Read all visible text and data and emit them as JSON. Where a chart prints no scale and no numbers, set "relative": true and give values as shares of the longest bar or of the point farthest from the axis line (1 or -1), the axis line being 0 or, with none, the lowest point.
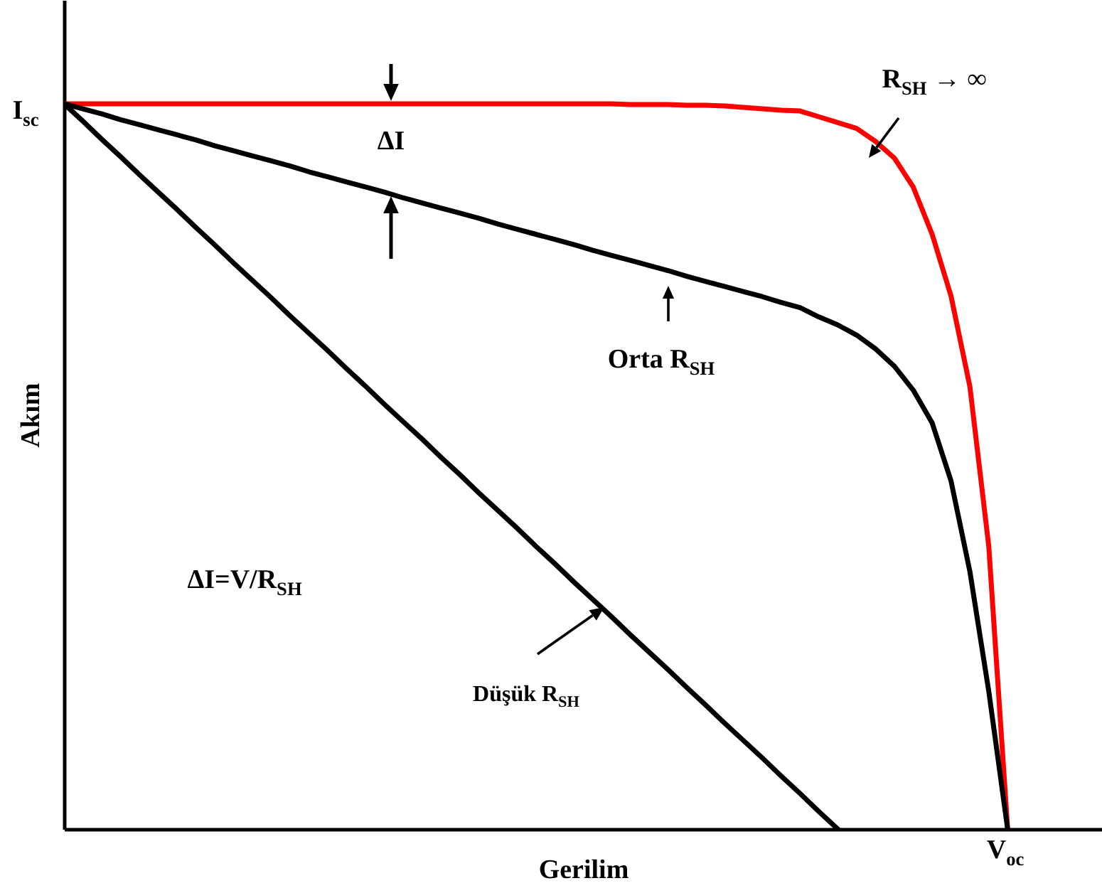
{
  "chart_data": {
    "type": "line",
    "relative": true,
    "xlabel": "Gerilim",
    "ylabel": "Akım",
    "grid": false,
    "marker": "none",
    "line_style": "solid",
    "categories": [
      null,
      null,
      null,
      null,
      null,
      null,
      null,
      null,
      null,
      null,
      null,
      null,
      null,
      null,
      null,
      null,
      null,
      null,
      null,
      null,
      null,
      null,
      null,
      null,
      null,
      null,
      null,
      null,
      null,
      null,
      null,
      null,
      null,
      null,
      null,
      null,
      null,
      null,
      null,
      null,
      null,
      null,
      null,
      null,
      null,
      null,
      null,
      null,
      null,
      null,
      null,
      null,
      null,
      null,
      null,
      null
    ],
    "series": [
      {
        "color": "#ff0000",
        "values": [
          1,
          1,
          1,
          1,
          1,
          1,
          1,
          1,
          1,
          1,
          1,
          1,
          1,
          1,
          1,
          1,
          1,
          1,
          1,
          1,
          1,
          1,
          1,
          1,
          1,
          1,
          1,
          1,
          1,
          1,
          0.999,
          0.999,
          0.999,
          0.998,
          0.998,
          0.997,
          0.995,
          0.993,
          0.991,
          0.99,
          0.982,
          0.974,
          0.966,
          0.948,
          0.925,
          0.885,
          0.82,
          0.735,
          0.61,
          0.39,
          0,
          null,
          null,
          null,
          null,
          null
        ]
      },
      {
        "color": "#000000",
        "values": [
          1,
          0.993,
          0.986,
          0.978,
          0.971,
          0.964,
          0.957,
          0.95,
          0.942,
          0.935,
          0.928,
          0.921,
          0.914,
          0.906,
          0.899,
          0.892,
          0.885,
          0.878,
          0.87,
          0.863,
          0.856,
          0.849,
          0.842,
          0.834,
          0.827,
          0.82,
          0.813,
          0.806,
          0.798,
          0.791,
          0.784,
          0.777,
          0.77,
          0.762,
          0.755,
          0.748,
          0.741,
          0.734,
          0.726,
          0.719,
          0.706,
          0.695,
          0.681,
          0.662,
          0.638,
          0.605,
          0.56,
          0.48,
          0.355,
          0.19,
          0,
          null,
          null,
          null,
          null,
          null
        ]
      },
      {
        "color": "#000000",
        "values": [
          1,
          0.976,
          0.951,
          0.927,
          0.902,
          0.878,
          0.854,
          0.829,
          0.805,
          0.78,
          0.756,
          0.732,
          0.707,
          0.683,
          0.659,
          0.634,
          0.61,
          0.585,
          0.561,
          0.537,
          0.512,
          0.488,
          0.463,
          0.439,
          0.415,
          0.39,
          0.366,
          0.341,
          0.317,
          0.293,
          0.268,
          0.244,
          0.22,
          0.195,
          0.171,
          0.146,
          0.122,
          0.098,
          0.073,
          0.049,
          0.024,
          0,
          null,
          null,
          null,
          null,
          null,
          null,
          null,
          null,
          null,
          null,
          null,
          null,
          null,
          null
        ]
      }
    ],
    "annotations": [
      "I$_{sc}$",
      "R$_{SH}$ → ∞",
      "ΔI",
      "Orta R$_{SH}$",
      "ΔI=V/R$_{SH}$",
      "Düşük R$_{SH}$",
      "V$_{oc}$"
    ]
  }
}
